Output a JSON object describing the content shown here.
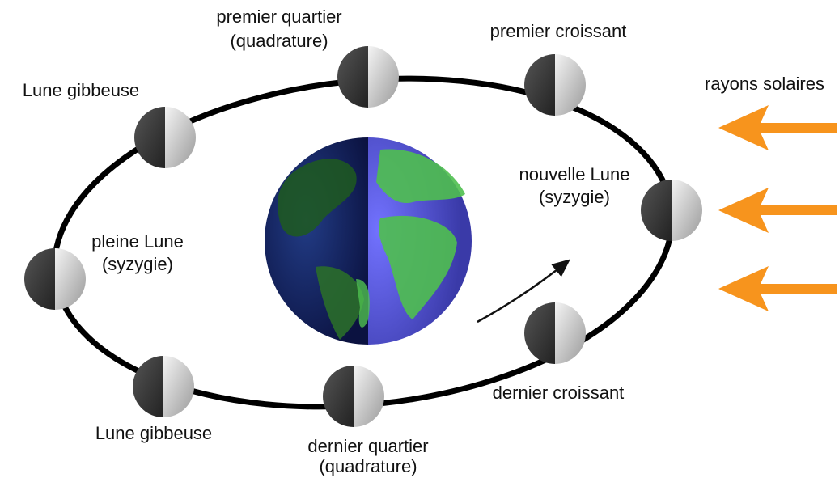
{
  "labels": {
    "premier_quartier": [
      "premier quartier",
      "(quadrature)"
    ],
    "premier_croissant": [
      "premier croissant"
    ],
    "lune_gibbeuse_haut": [
      "Lune gibbeuse"
    ],
    "rayons_solaires": [
      "rayons solaires"
    ],
    "nouvelle_lune": [
      "nouvelle Lune",
      "(syzygie)"
    ],
    "pleine_lune": [
      "pleine Lune",
      "(syzygie)"
    ],
    "dernier_croissant": [
      "dernier croissant"
    ],
    "lune_gibbeuse_bas": [
      "Lune gibbeuse"
    ],
    "dernier_quartier": [
      "dernier quartier",
      "(quadrature)"
    ]
  }
}
